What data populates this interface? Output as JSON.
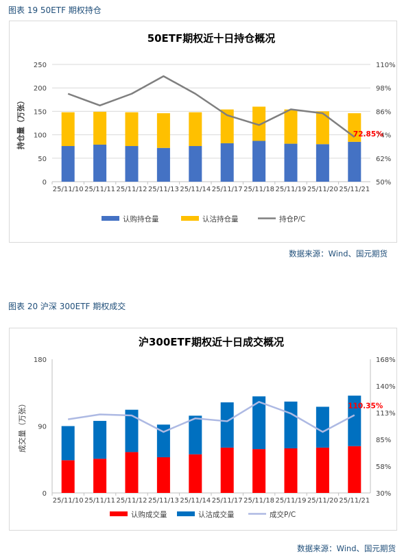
{
  "figures": [
    {
      "caption": "图表 19 50ETF 期权持仓",
      "source": "数据来源：Wind、国元期货"
    },
    {
      "caption": "图表 20 沪深 300ETF 期权成交",
      "source": "数据来源：Wind、国元期货"
    }
  ],
  "colors": {
    "call_blue": "#4472c4",
    "put_yellow": "#ffc000",
    "pc_gray": "#7f7f7f",
    "call_red": "#ff0000",
    "put_blue": "#0070c0",
    "pc_lightblue": "#adb9e3",
    "label_red": "#ff0000",
    "caption_blue": "#1f4e79"
  },
  "chart_data": [
    {
      "type": "bar",
      "stacked": true,
      "title": "50ETF期权近十日持仓概况",
      "ylabel": "持仓量（万张）",
      "categories": [
        "25/11/10",
        "25/11/11",
        "25/11/12",
        "25/11/13",
        "25/11/14",
        "25/11/17",
        "25/11/18",
        "25/11/19",
        "25/11/20",
        "25/11/21"
      ],
      "series": [
        {
          "name": "认购持仓量",
          "kind": "bar",
          "axis": "left",
          "values": [
            76,
            79,
            76,
            72,
            76,
            82,
            87,
            81,
            80,
            85
          ]
        },
        {
          "name": "认沽持仓量",
          "kind": "bar",
          "axis": "left",
          "values": [
            72,
            70,
            72,
            74,
            72,
            72,
            73,
            73,
            70,
            61
          ]
        },
        {
          "name": "持仓P/C",
          "kind": "line",
          "axis": "right",
          "values": [
            95,
            89,
            95,
            104,
            95,
            84,
            79,
            87,
            85,
            72.85
          ]
        }
      ],
      "ylim": [
        0,
        250
      ],
      "yticks": [
        "0",
        "50",
        "100",
        "150",
        "200",
        "250"
      ],
      "ylim_right": [
        50,
        110
      ],
      "yticks_right": [
        "50%",
        "62%",
        "74%",
        "86%",
        "98%",
        "110%"
      ],
      "annotation": "72.85%",
      "legend": "bottom"
    },
    {
      "type": "bar",
      "stacked": true,
      "title": "沪300ETF期权近十日成交概况",
      "ylabel": "成交量（万张）",
      "categories": [
        "25/11/10",
        "25/11/11",
        "25/11/12",
        "25/11/13",
        "25/11/14",
        "25/11/17",
        "25/11/18",
        "25/11/19",
        "25/11/20",
        "25/11/21"
      ],
      "series": [
        {
          "name": "认购成交量",
          "kind": "bar",
          "axis": "left",
          "values": [
            44,
            46,
            55,
            48,
            52,
            61,
            59,
            60,
            61,
            63
          ]
        },
        {
          "name": "认沽成交量",
          "kind": "bar",
          "axis": "left",
          "values": [
            46,
            51,
            57,
            44,
            52,
            61,
            71,
            63,
            55,
            68
          ]
        },
        {
          "name": "成交P/C",
          "kind": "line",
          "axis": "right",
          "values": [
            106,
            111,
            110,
            93,
            107,
            104,
            124,
            112,
            93,
            110.35
          ]
        }
      ],
      "ylim": [
        0,
        180
      ],
      "yticks": [
        "0",
        "90",
        "180"
      ],
      "ylim_right": [
        30,
        168
      ],
      "yticks_right": [
        "30%",
        "58%",
        "85%",
        "113%",
        "140%",
        "168%"
      ],
      "annotation": "110.35%",
      "legend": "bottom"
    }
  ]
}
